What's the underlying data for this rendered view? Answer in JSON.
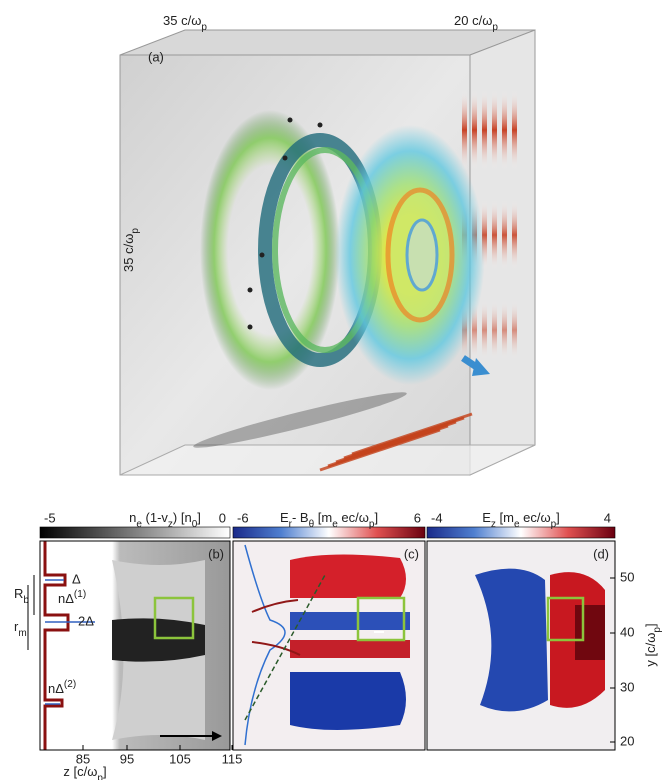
{
  "panel_a": {
    "label": "(a)",
    "top_left": [
      {
        "t": "35 c/ω"
      },
      {
        "sub": "p"
      }
    ],
    "top_right": [
      {
        "t": "20 c/ω"
      },
      {
        "sub": "p"
      }
    ],
    "side": [
      {
        "t": "35 c/ω"
      },
      {
        "sub": "p"
      }
    ]
  },
  "colorbars": [
    {
      "title": [
        {
          "t": "n"
        },
        {
          "sub": "e"
        },
        {
          "t": " (1-v"
        },
        {
          "sub": "z"
        },
        {
          "t": ") [n"
        },
        {
          "sub": "0"
        },
        {
          "t": "]"
        }
      ],
      "min": "-5",
      "max": "0"
    },
    {
      "title": [
        {
          "t": "E"
        },
        {
          "sub": "r"
        },
        {
          "t": "- B"
        },
        {
          "sub": "θ"
        },
        {
          "t": " [m"
        },
        {
          "sub": "e"
        },
        {
          "t": " ec/ω"
        },
        {
          "sub": "p"
        },
        {
          "t": "]"
        }
      ],
      "min": "-6",
      "max": "6"
    },
    {
      "title": [
        {
          "t": "E"
        },
        {
          "sub": "z"
        },
        {
          "t": " [m"
        },
        {
          "sub": "e"
        },
        {
          "t": " ec/ω"
        },
        {
          "sub": "p"
        },
        {
          "t": "]"
        }
      ],
      "min": "-4",
      "max": "4"
    }
  ],
  "panels": {
    "b": "(b)",
    "c": "(c)",
    "d": "(d)"
  },
  "annotations": {
    "delta": "Δ",
    "rb": [
      {
        "t": "R"
      },
      {
        "sub": "b"
      }
    ],
    "rm": [
      {
        "t": "r"
      },
      {
        "sub": "m"
      }
    ],
    "n1": [
      {
        "t": "nΔ"
      },
      {
        "sup": "(1)"
      }
    ],
    "two_delta": "2Δ",
    "n2": [
      {
        "t": "nΔ"
      },
      {
        "sup": "(2)"
      }
    ]
  },
  "x_axis": {
    "label": [
      {
        "t": "z [c/ω"
      },
      {
        "sub": "p"
      },
      {
        "t": "]"
      }
    ],
    "ticks": [
      "85",
      "95",
      "105",
      "115"
    ]
  },
  "y_axis": {
    "label": [
      {
        "t": "y [c/ω"
      },
      {
        "sub": "p"
      },
      {
        "t": "]"
      }
    ],
    "ticks": [
      "50",
      "40",
      "30",
      "20"
    ]
  }
}
